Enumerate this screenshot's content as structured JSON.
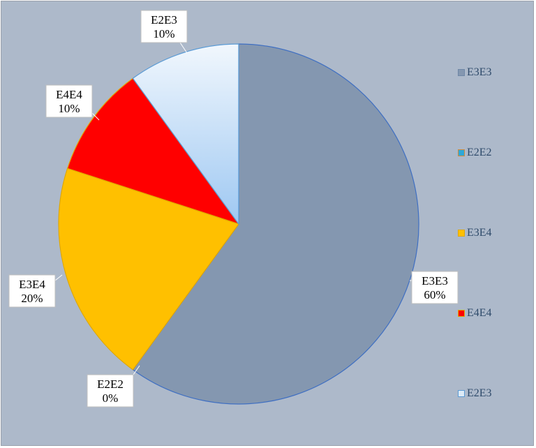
{
  "chart_data": {
    "type": "pie",
    "slices": [
      {
        "label": "E3E3",
        "value": 60,
        "display": "60%",
        "color": "#8497b0",
        "edge": "#3f6fc2"
      },
      {
        "label": "E2E2",
        "value": 0,
        "display": "0%",
        "color": "#2ea8d8",
        "edge": "#d08a3a"
      },
      {
        "label": "E3E4",
        "value": 20,
        "display": "20%",
        "color": "#ffc000",
        "edge": "#e0a800"
      },
      {
        "label": "E4E4",
        "value": 10,
        "display": "10%",
        "color": "#ff0000",
        "edge": "#e0a800"
      },
      {
        "label": "E2E3",
        "value": 10,
        "display": "10%",
        "color": "#ddebf7",
        "edge": "#5b9bd5"
      }
    ],
    "legend": {
      "position": "right",
      "entries": [
        "E3E3",
        "E2E2",
        "E3E4",
        "E4E4",
        "E2E3"
      ]
    }
  }
}
